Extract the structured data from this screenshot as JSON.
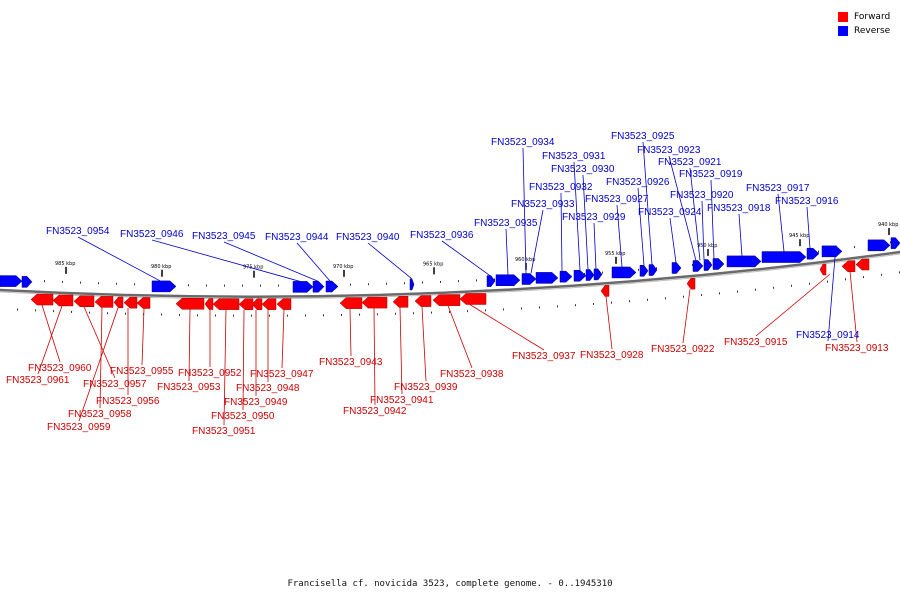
{
  "legend": {
    "forward_label": "Forward",
    "reverse_label": "Reverse",
    "forward_color": "#ff0000",
    "reverse_color": "#0000ff"
  },
  "caption": "Francisella cf. novicida 3523, complete genome. - 0..1945310",
  "ticks": [
    "985 kbp",
    "980 kbp",
    "975 kbp",
    "970 kbp",
    "965 kbp",
    "960 kbp",
    "955 kbp",
    "950 kbp",
    "945 kbp",
    "940 kbp"
  ],
  "reverse_labels": [
    "FN3523_0954",
    "FN3523_0946",
    "FN3523_0945",
    "FN3523_0944",
    "FN3523_0940",
    "FN3523_0936",
    "FN3523_0935",
    "FN3523_0934",
    "FN3523_0933",
    "FN3523_0932",
    "FN3523_0931",
    "FN3523_0930",
    "FN3523_0929",
    "FN3523_0927",
    "FN3523_0926",
    "FN3523_0925",
    "FN3523_0924",
    "FN3523_0923",
    "FN3523_0921",
    "FN3523_0920",
    "FN3523_0919",
    "FN3523_0918",
    "FN3523_0917",
    "FN3523_0916",
    "FN3523_0914"
  ],
  "forward_labels": [
    "FN3523_0960",
    "FN3523_0961",
    "FN3523_0957",
    "FN3523_0958",
    "FN3523_0959",
    "FN3523_0956",
    "FN3523_0955",
    "FN3523_0953",
    "FN3523_0952",
    "FN3523_0951",
    "FN3523_0950",
    "FN3523_0949",
    "FN3523_0948",
    "FN3523_0947",
    "FN3523_0943",
    "FN3523_0942",
    "FN3523_0941",
    "FN3523_0939",
    "FN3523_0938",
    "FN3523_0937",
    "FN3523_0928",
    "FN3523_0922",
    "FN3523_0915",
    "FN3523_0913"
  ]
}
